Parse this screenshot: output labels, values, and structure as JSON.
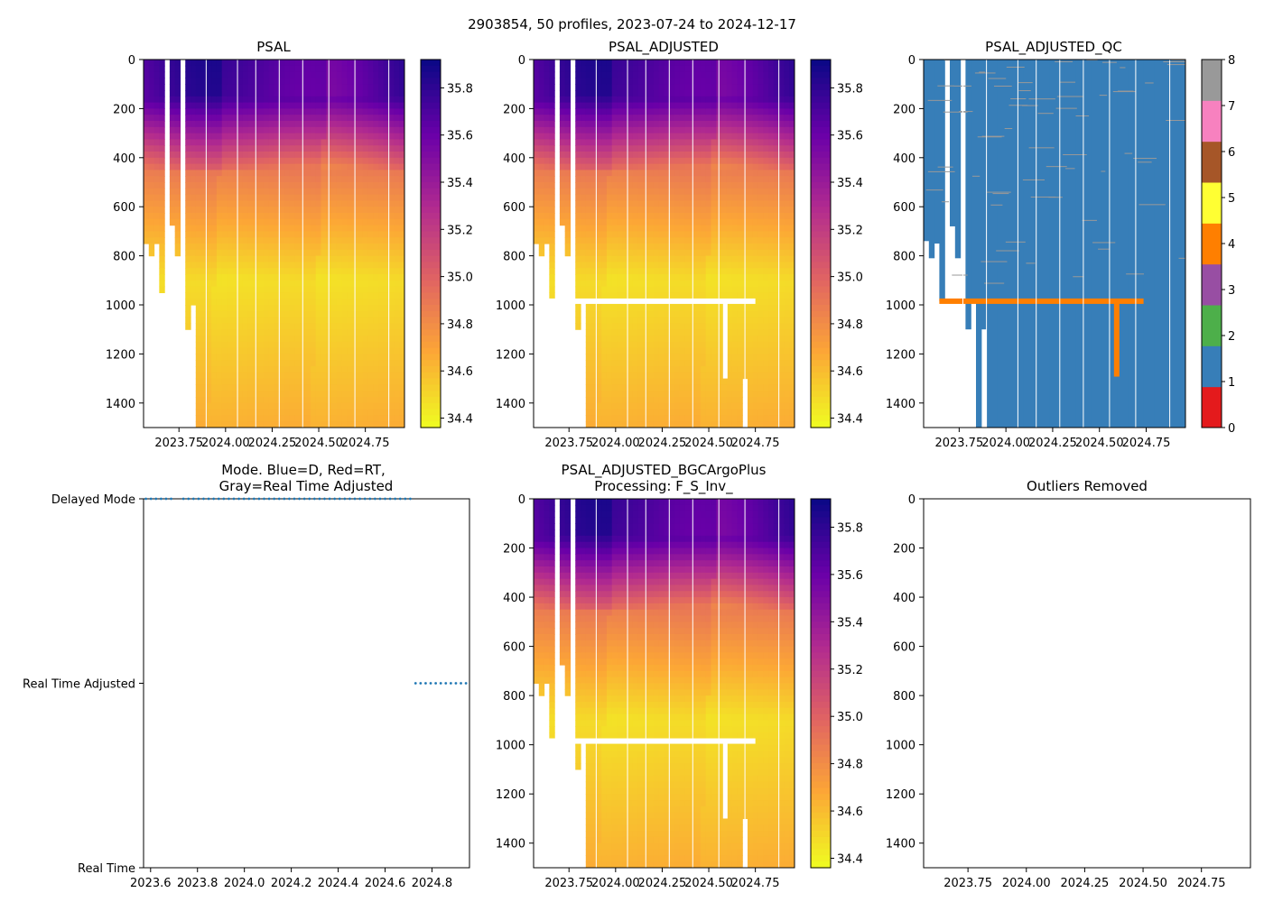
{
  "suptitle": "2903854, 50 profiles, 2023-07-24 to 2024-12-17",
  "colors": {
    "plasma": [
      "#f0f921",
      "#fca636",
      "#e16462",
      "#b12a90",
      "#6a00a8",
      "#0d0887"
    ],
    "qc": [
      "#e41a1c",
      "#377eb8",
      "#4daf4a",
      "#984ea3",
      "#ff7f00",
      "#ffff33",
      "#a65628",
      "#f781bf",
      "#999999"
    ],
    "mode_dots": "#1f77b4",
    "gap_lines": "#ffffff"
  },
  "chart_data": [
    {
      "id": "psal",
      "type": "heatmap",
      "title": "PSAL",
      "variable": "PSAL",
      "xlim": [
        2023.56,
        2024.96
      ],
      "ylim": [
        1500,
        0
      ],
      "xticks": [
        "2023.75",
        "2024.00",
        "2024.25",
        "2024.50",
        "2024.75"
      ],
      "yticks": [
        "0",
        "200",
        "400",
        "600",
        "800",
        "1000",
        "1200",
        "1400"
      ],
      "colorbar": {
        "min": 34.36,
        "max": 35.92,
        "ticks": [
          "34.4",
          "34.6",
          "34.8",
          "35.0",
          "35.2",
          "35.4",
          "35.6",
          "35.8"
        ]
      },
      "fill_line": false
    },
    {
      "id": "psal_adj",
      "type": "heatmap",
      "title": "PSAL_ADJUSTED",
      "variable": "PSAL_ADJUSTED",
      "xlim": [
        2023.56,
        2024.96
      ],
      "ylim": [
        1500,
        0
      ],
      "xticks": [
        "2023.75",
        "2024.00",
        "2024.25",
        "2024.50",
        "2024.75"
      ],
      "yticks": [
        "0",
        "200",
        "400",
        "600",
        "800",
        "1000",
        "1200",
        "1400"
      ],
      "colorbar": {
        "min": 34.36,
        "max": 35.92,
        "ticks": [
          "34.4",
          "34.6",
          "34.8",
          "35.0",
          "35.2",
          "35.4",
          "35.6",
          "35.8"
        ]
      },
      "fill_line": true,
      "fill_line_depth": 985
    },
    {
      "id": "qc",
      "type": "heatmap",
      "title": "PSAL_ADJUSTED_QC",
      "variable": "PSAL_ADJUSTED_QC",
      "xlim": [
        2023.56,
        2024.96
      ],
      "ylim": [
        1500,
        0
      ],
      "xticks": [
        "2023.75",
        "2024.00",
        "2024.25",
        "2024.50",
        "2024.75"
      ],
      "yticks": [
        "0",
        "200",
        "400",
        "600",
        "800",
        "1000",
        "1200",
        "1400"
      ],
      "colorbar": {
        "min": 0,
        "max": 8,
        "ticks": [
          "0",
          "1",
          "2",
          "3",
          "4",
          "5",
          "6",
          "7",
          "8"
        ]
      },
      "dominant_flag": 1,
      "bad_flag": 4,
      "bad_flag_depth": 985
    },
    {
      "id": "mode",
      "type": "scatter",
      "title_line1": "Mode. Blue=D, Red=RT,",
      "title_line2": "Gray=Real Time Adjusted",
      "xlim": [
        2023.57,
        2024.96
      ],
      "xticks": [
        "2023.6",
        "2023.8",
        "2024.0",
        "2024.2",
        "2024.4",
        "2024.6",
        "2024.8"
      ],
      "ycategories": [
        "Real Time",
        "Real Time Adjusted",
        "Delayed Mode"
      ],
      "series": [
        {
          "name": "Delayed Mode",
          "x_ranges": [
            [
              2023.58,
              2023.69
            ],
            [
              2023.74,
              2024.72
            ]
          ],
          "level": 2
        },
        {
          "name": "Real Time Adjusted",
          "x_ranges": [
            [
              2024.73,
              2024.96
            ]
          ],
          "level": 1
        }
      ]
    },
    {
      "id": "bgc",
      "type": "heatmap",
      "title_line1": "PSAL_ADJUSTED_BGCArgoPlus",
      "title_line2": "Processing: F_S_Inv_",
      "variable": "PSAL_ADJUSTED_BGCArgoPlus",
      "xlim": [
        2023.56,
        2024.96
      ],
      "ylim": [
        1500,
        0
      ],
      "xticks": [
        "2023.75",
        "2024.00",
        "2024.25",
        "2024.50",
        "2024.75"
      ],
      "yticks": [
        "0",
        "200",
        "400",
        "600",
        "800",
        "1000",
        "1200",
        "1400"
      ],
      "colorbar": {
        "min": 34.36,
        "max": 35.92,
        "ticks": [
          "34.4",
          "34.6",
          "34.8",
          "35.0",
          "35.2",
          "35.4",
          "35.6",
          "35.8"
        ]
      },
      "fill_line": true,
      "fill_line_depth": 985
    },
    {
      "id": "outliers",
      "type": "scatter",
      "title": "Outliers Removed",
      "xlim": [
        2023.56,
        2024.96
      ],
      "ylim": [
        1500,
        0
      ],
      "xticks": [
        "2023.75",
        "2024.00",
        "2024.25",
        "2024.50",
        "2024.75"
      ],
      "yticks": [
        "0",
        "200",
        "400",
        "600",
        "800",
        "1000",
        "1200",
        "1400"
      ],
      "points": []
    }
  ]
}
